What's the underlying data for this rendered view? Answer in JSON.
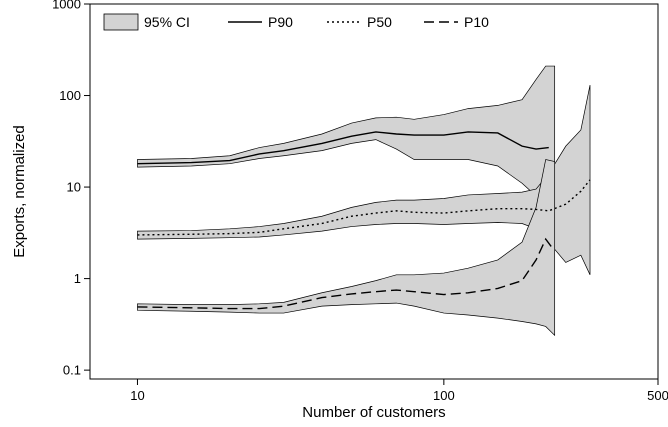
{
  "chart_data": {
    "type": "line",
    "title": "",
    "xlabel": "Number of customers",
    "ylabel": "Exports, normalized",
    "x_scale": "log",
    "y_scale": "log",
    "xlim": [
      7,
      500
    ],
    "ylim": [
      0.08,
      1000
    ],
    "x_ticks": [
      {
        "value": 10,
        "label": "10"
      },
      {
        "value": 100,
        "label": "100"
      },
      {
        "value": 500,
        "label": "500"
      }
    ],
    "y_ticks": [
      {
        "value": 0.1,
        "label": "0.1"
      },
      {
        "value": 1,
        "label": "1"
      },
      {
        "value": 10,
        "label": "10"
      },
      {
        "value": 100,
        "label": "100"
      },
      {
        "value": 1000,
        "label": "1000"
      }
    ],
    "grid": false,
    "legend_position": "top",
    "legend": [
      {
        "label": "95% CI",
        "style": "band"
      },
      {
        "label": "P90",
        "style": "solid"
      },
      {
        "label": "P50",
        "style": "dotted"
      },
      {
        "label": "P10",
        "style": "dashed"
      }
    ],
    "colors": {
      "band_fill": "#d3d3d3",
      "band_stroke": "#000000",
      "line": "#000000"
    },
    "series": [
      {
        "name": "P90",
        "style": "solid",
        "x": [
          10,
          15,
          20,
          25,
          30,
          40,
          50,
          60,
          70,
          80,
          100,
          120,
          150,
          180,
          200,
          220
        ],
        "y": [
          18,
          18.5,
          19.5,
          23,
          25,
          30,
          36,
          40,
          38,
          37,
          37,
          40,
          39,
          28,
          26,
          27
        ],
        "ci_x": [
          10,
          15,
          20,
          25,
          30,
          40,
          50,
          60,
          70,
          80,
          100,
          120,
          150,
          180,
          200,
          215,
          230,
          230
        ],
        "ci_upper": [
          20,
          20.5,
          22,
          27,
          30,
          38,
          50,
          57,
          58,
          55,
          62,
          72,
          78,
          90,
          150,
          210,
          210,
          210
        ],
        "ci_lower": [
          16.5,
          17,
          18,
          20.5,
          22,
          25,
          30,
          33,
          26,
          20,
          20,
          20,
          17,
          11,
          8,
          7,
          7,
          210
        ]
      },
      {
        "name": "P50",
        "style": "dotted",
        "x": [
          10,
          15,
          20,
          25,
          30,
          40,
          50,
          60,
          70,
          80,
          100,
          120,
          150,
          180,
          200,
          220,
          250,
          280,
          300
        ],
        "y": [
          3.0,
          3.05,
          3.1,
          3.2,
          3.5,
          4.0,
          4.8,
          5.2,
          5.5,
          5.3,
          5.2,
          5.5,
          5.8,
          5.8,
          5.7,
          5.5,
          6.5,
          9.0,
          12.0
        ],
        "ci_x": [
          10,
          15,
          20,
          25,
          30,
          40,
          50,
          60,
          70,
          80,
          100,
          120,
          150,
          180,
          200,
          220,
          250,
          280,
          300,
          300
        ],
        "ci_upper": [
          3.3,
          3.35,
          3.5,
          3.7,
          4.0,
          4.8,
          6.0,
          6.8,
          7.2,
          7.2,
          7.5,
          8.2,
          8.5,
          8.8,
          9.5,
          14,
          28,
          42,
          130,
          130
        ],
        "ci_lower": [
          2.7,
          2.75,
          2.8,
          2.85,
          3.0,
          3.3,
          3.7,
          3.9,
          4.0,
          4.0,
          3.9,
          4.0,
          4.1,
          4.0,
          3.5,
          2.5,
          1.5,
          1.8,
          1.1,
          130
        ]
      },
      {
        "name": "P10",
        "style": "dashed",
        "x": [
          10,
          15,
          20,
          25,
          30,
          40,
          50,
          60,
          70,
          80,
          100,
          120,
          150,
          180,
          200,
          215,
          225
        ],
        "y": [
          0.49,
          0.48,
          0.47,
          0.47,
          0.5,
          0.62,
          0.68,
          0.72,
          0.75,
          0.72,
          0.67,
          0.7,
          0.78,
          0.95,
          1.6,
          2.7,
          2.2
        ],
        "ci_x": [
          10,
          15,
          20,
          25,
          30,
          40,
          50,
          60,
          70,
          80,
          100,
          120,
          150,
          180,
          200,
          215,
          230,
          230
        ],
        "ci_upper": [
          0.53,
          0.52,
          0.52,
          0.53,
          0.55,
          0.7,
          0.82,
          0.95,
          1.1,
          1.1,
          1.15,
          1.3,
          1.6,
          2.5,
          6,
          20,
          19,
          19
        ],
        "ci_lower": [
          0.45,
          0.44,
          0.43,
          0.42,
          0.42,
          0.5,
          0.52,
          0.53,
          0.54,
          0.5,
          0.42,
          0.4,
          0.37,
          0.34,
          0.32,
          0.3,
          0.24,
          19
        ]
      }
    ]
  }
}
